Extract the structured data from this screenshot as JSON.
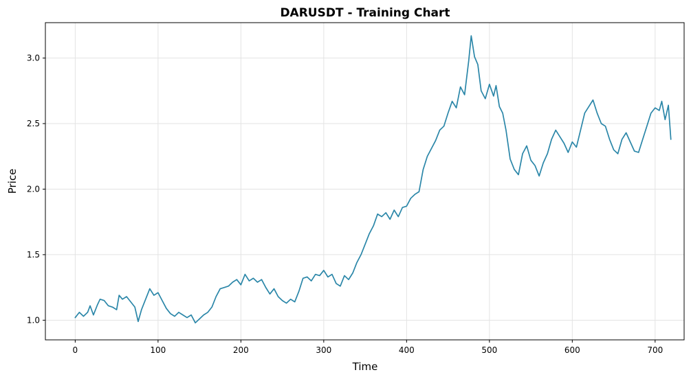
{
  "chart_data": {
    "type": "line",
    "title": "DARUSDT - Training Chart",
    "xlabel": "Time",
    "ylabel": "Price",
    "xlim": [
      -36,
      735
    ],
    "ylim": [
      0.85,
      3.27
    ],
    "x_ticks": [
      0,
      100,
      200,
      300,
      400,
      500,
      600,
      700
    ],
    "y_ticks": [
      1.0,
      1.5,
      2.0,
      2.5,
      3.0
    ],
    "y_tick_labels": [
      "1.0",
      "1.5",
      "2.0",
      "2.5",
      "3.0"
    ],
    "grid": true,
    "legend": "none",
    "series": [
      {
        "color": "#2a86a8",
        "points": [
          [
            0,
            1.02
          ],
          [
            5,
            1.06
          ],
          [
            10,
            1.03
          ],
          [
            15,
            1.06
          ],
          [
            18,
            1.11
          ],
          [
            22,
            1.04
          ],
          [
            27,
            1.12
          ],
          [
            30,
            1.16
          ],
          [
            35,
            1.15
          ],
          [
            40,
            1.11
          ],
          [
            45,
            1.1
          ],
          [
            50,
            1.08
          ],
          [
            53,
            1.19
          ],
          [
            57,
            1.16
          ],
          [
            62,
            1.18
          ],
          [
            67,
            1.14
          ],
          [
            72,
            1.1
          ],
          [
            76,
            0.99
          ],
          [
            80,
            1.08
          ],
          [
            85,
            1.16
          ],
          [
            90,
            1.24
          ],
          [
            95,
            1.19
          ],
          [
            100,
            1.21
          ],
          [
            105,
            1.15
          ],
          [
            110,
            1.09
          ],
          [
            115,
            1.05
          ],
          [
            120,
            1.03
          ],
          [
            125,
            1.06
          ],
          [
            130,
            1.04
          ],
          [
            135,
            1.02
          ],
          [
            140,
            1.04
          ],
          [
            145,
            0.98
          ],
          [
            150,
            1.01
          ],
          [
            155,
            1.04
          ],
          [
            160,
            1.06
          ],
          [
            165,
            1.1
          ],
          [
            170,
            1.18
          ],
          [
            175,
            1.24
          ],
          [
            180,
            1.25
          ],
          [
            185,
            1.26
          ],
          [
            190,
            1.29
          ],
          [
            195,
            1.31
          ],
          [
            200,
            1.27
          ],
          [
            205,
            1.35
          ],
          [
            210,
            1.3
          ],
          [
            215,
            1.32
          ],
          [
            220,
            1.29
          ],
          [
            225,
            1.31
          ],
          [
            230,
            1.25
          ],
          [
            235,
            1.2
          ],
          [
            240,
            1.24
          ],
          [
            245,
            1.18
          ],
          [
            250,
            1.15
          ],
          [
            255,
            1.13
          ],
          [
            260,
            1.16
          ],
          [
            265,
            1.14
          ],
          [
            270,
            1.22
          ],
          [
            275,
            1.32
          ],
          [
            280,
            1.33
          ],
          [
            285,
            1.3
          ],
          [
            290,
            1.35
          ],
          [
            295,
            1.34
          ],
          [
            300,
            1.38
          ],
          [
            305,
            1.33
          ],
          [
            310,
            1.35
          ],
          [
            315,
            1.28
          ],
          [
            320,
            1.26
          ],
          [
            325,
            1.34
          ],
          [
            330,
            1.31
          ],
          [
            335,
            1.36
          ],
          [
            340,
            1.44
          ],
          [
            345,
            1.5
          ],
          [
            350,
            1.58
          ],
          [
            355,
            1.66
          ],
          [
            360,
            1.72
          ],
          [
            365,
            1.81
          ],
          [
            370,
            1.79
          ],
          [
            375,
            1.82
          ],
          [
            380,
            1.77
          ],
          [
            385,
            1.84
          ],
          [
            390,
            1.79
          ],
          [
            395,
            1.86
          ],
          [
            400,
            1.87
          ],
          [
            405,
            1.93
          ],
          [
            410,
            1.96
          ],
          [
            415,
            1.98
          ],
          [
            420,
            2.15
          ],
          [
            425,
            2.25
          ],
          [
            430,
            2.31
          ],
          [
            435,
            2.37
          ],
          [
            440,
            2.45
          ],
          [
            445,
            2.48
          ],
          [
            450,
            2.58
          ],
          [
            455,
            2.67
          ],
          [
            460,
            2.62
          ],
          [
            465,
            2.78
          ],
          [
            470,
            2.72
          ],
          [
            475,
            2.98
          ],
          [
            478,
            3.17
          ],
          [
            482,
            3.01
          ],
          [
            486,
            2.95
          ],
          [
            490,
            2.75
          ],
          [
            495,
            2.69
          ],
          [
            500,
            2.8
          ],
          [
            505,
            2.71
          ],
          [
            508,
            2.79
          ],
          [
            512,
            2.63
          ],
          [
            516,
            2.58
          ],
          [
            520,
            2.45
          ],
          [
            525,
            2.23
          ],
          [
            530,
            2.15
          ],
          [
            535,
            2.11
          ],
          [
            540,
            2.27
          ],
          [
            545,
            2.33
          ],
          [
            550,
            2.22
          ],
          [
            555,
            2.18
          ],
          [
            560,
            2.1
          ],
          [
            565,
            2.2
          ],
          [
            570,
            2.27
          ],
          [
            575,
            2.38
          ],
          [
            580,
            2.45
          ],
          [
            585,
            2.4
          ],
          [
            590,
            2.35
          ],
          [
            595,
            2.28
          ],
          [
            600,
            2.36
          ],
          [
            605,
            2.32
          ],
          [
            610,
            2.45
          ],
          [
            615,
            2.58
          ],
          [
            620,
            2.63
          ],
          [
            625,
            2.68
          ],
          [
            630,
            2.58
          ],
          [
            635,
            2.5
          ],
          [
            640,
            2.48
          ],
          [
            645,
            2.38
          ],
          [
            650,
            2.3
          ],
          [
            655,
            2.27
          ],
          [
            660,
            2.38
          ],
          [
            665,
            2.43
          ],
          [
            670,
            2.36
          ],
          [
            675,
            2.29
          ],
          [
            680,
            2.28
          ],
          [
            685,
            2.38
          ],
          [
            690,
            2.48
          ],
          [
            695,
            2.58
          ],
          [
            700,
            2.62
          ],
          [
            705,
            2.6
          ],
          [
            708,
            2.67
          ],
          [
            712,
            2.53
          ],
          [
            716,
            2.64
          ],
          [
            719,
            2.38
          ]
        ]
      }
    ]
  }
}
